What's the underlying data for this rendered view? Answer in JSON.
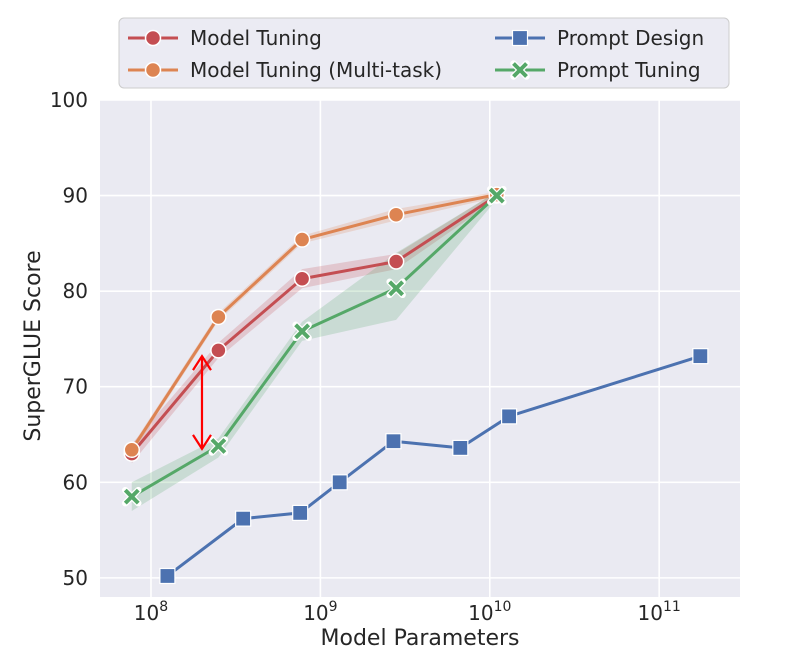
{
  "chart_data": {
    "type": "line",
    "xscale": "log",
    "xlim": [
      50000000,
      300000000000
    ],
    "ylim": [
      48,
      100
    ],
    "xlabel": "Model Parameters",
    "ylabel": "SuperGLUE Score",
    "x_ticks": [
      {
        "value": 100000000,
        "base": "10",
        "exp": "8"
      },
      {
        "value": 1000000000,
        "base": "10",
        "exp": "9"
      },
      {
        "value": 10000000000,
        "base": "10",
        "exp": "10"
      },
      {
        "value": 100000000000,
        "base": "10",
        "exp": "11"
      }
    ],
    "y_ticks": [
      "50",
      "60",
      "70",
      "80",
      "90",
      "100"
    ],
    "grid": true,
    "legend_position": "top",
    "series": [
      {
        "name": "Model Tuning",
        "color": "#c44e52",
        "marker": "circle",
        "x": [
          77000000,
          250000000,
          780000000,
          2800000000,
          11000000000
        ],
        "y": [
          63.0,
          73.8,
          81.3,
          83.1,
          90.0
        ],
        "band_low": [
          62.0,
          73.0,
          80.3,
          82.3,
          89.6
        ],
        "band_high": [
          64.0,
          74.6,
          82.3,
          83.9,
          90.4
        ]
      },
      {
        "name": "Model Tuning (Multi-task)",
        "color": "#dd8452",
        "marker": "circle",
        "x": [
          77000000,
          250000000,
          780000000,
          2800000000,
          11000000000
        ],
        "y": [
          63.4,
          77.3,
          85.4,
          88.0,
          90.1
        ],
        "band_low": [
          63.0,
          76.9,
          85.0,
          87.4,
          89.8
        ],
        "band_high": [
          63.8,
          77.7,
          85.8,
          88.6,
          90.4
        ]
      },
      {
        "name": "Prompt Design",
        "color": "#4c72b0",
        "marker": "square",
        "x": [
          125000000,
          350000000,
          760000000,
          1300000000,
          2700000000,
          6700000000,
          13000000000,
          175000000000
        ],
        "y": [
          50.2,
          56.2,
          56.8,
          60.0,
          64.3,
          63.6,
          66.9,
          73.2
        ]
      },
      {
        "name": "Prompt Tuning",
        "color": "#55a868",
        "marker": "x",
        "x": [
          77000000,
          250000000,
          780000000,
          2800000000,
          11000000000
        ],
        "y": [
          58.5,
          63.8,
          75.8,
          80.3,
          90.0
        ],
        "band_low": [
          57.0,
          62.6,
          74.8,
          77.0,
          89.6
        ],
        "band_high": [
          60.0,
          64.6,
          76.8,
          84.0,
          90.4
        ]
      }
    ],
    "annotations": [
      {
        "type": "double-arrow",
        "color": "#ff0000",
        "x": 200000000,
        "y_from": 73.2,
        "y_to": 63.5
      }
    ]
  }
}
